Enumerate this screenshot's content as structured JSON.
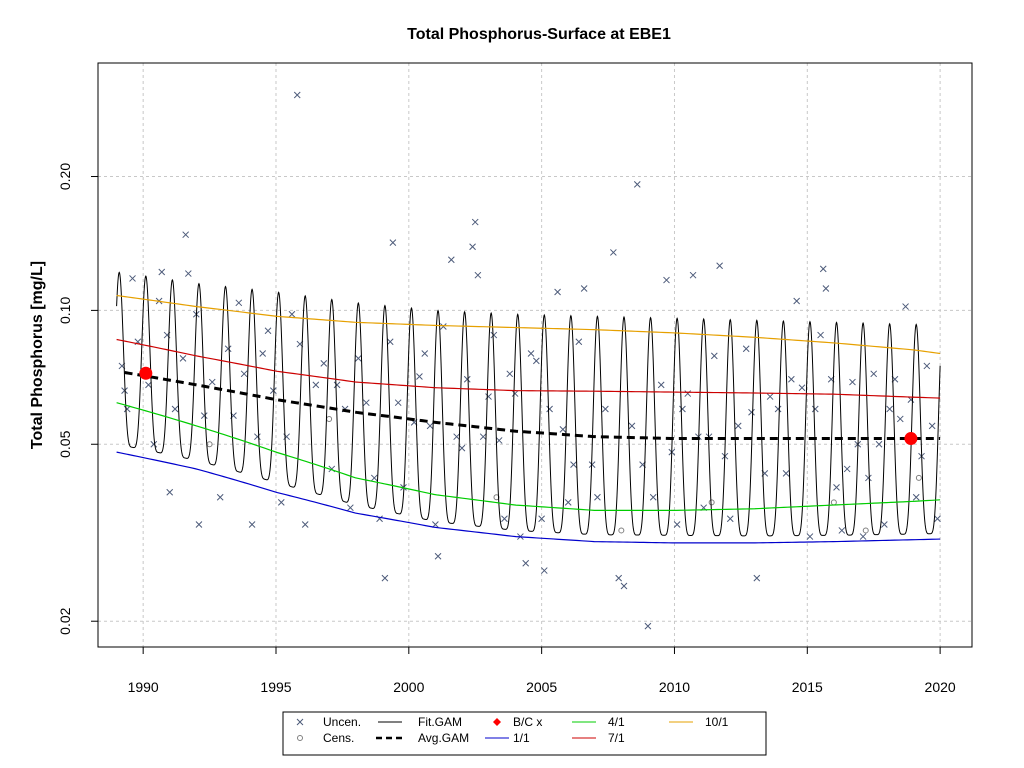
{
  "chart_data": {
    "type": "line",
    "title": "Total Phosphorus-Surface at EBE1",
    "xlabel": "",
    "ylabel": "Total Phosphorus [mg/L]",
    "xlim": [
      1988.3,
      2021.2
    ],
    "ylim": [
      0.0175,
      0.36
    ],
    "yscale": "log",
    "x_ticks": [
      1990,
      1995,
      2000,
      2005,
      2010,
      2015,
      2020
    ],
    "y_ticks": [
      0.02,
      0.05,
      0.1,
      0.2
    ],
    "y_tick_labels": [
      "0.02",
      "0.05",
      "0.10",
      "0.20"
    ],
    "grid": true,
    "legend_position": "bottom",
    "legend": [
      {
        "label": "Uncen.",
        "symbol": "x",
        "color": "#4d5b7a"
      },
      {
        "label": "Cens.",
        "symbol": "circle",
        "color": "#7f7f7f"
      },
      {
        "label": "Fit.GAM",
        "symbol": "line",
        "color": "#000000"
      },
      {
        "label": "Avg.GAM",
        "symbol": "dashed",
        "color": "#000000"
      },
      {
        "label": "B/C x",
        "symbol": "diamond",
        "color": "#ff0000"
      },
      {
        "label": "1/1",
        "symbol": "line",
        "color": "#0000cc"
      },
      {
        "label": "4/1",
        "symbol": "line",
        "color": "#00cc00"
      },
      {
        "label": "7/1",
        "symbol": "line",
        "color": "#cc0000"
      },
      {
        "label": "10/1",
        "symbol": "line",
        "color": "#e6a000"
      }
    ],
    "series": [
      {
        "name": "1/1",
        "color": "#0000cc",
        "x": [
          1989.0,
          1992,
          1995,
          1998,
          2001,
          2004,
          2007,
          2010,
          2013,
          2016,
          2019,
          2020.0
        ],
        "y": [
          0.048,
          0.044,
          0.039,
          0.035,
          0.0325,
          0.031,
          0.0302,
          0.03,
          0.03,
          0.0302,
          0.0305,
          0.0306
        ]
      },
      {
        "name": "4/1",
        "color": "#00cc00",
        "x": [
          1989.0,
          1992,
          1995,
          1998,
          2001,
          2004,
          2007,
          2010,
          2013,
          2016,
          2019,
          2020.0
        ],
        "y": [
          0.062,
          0.055,
          0.048,
          0.042,
          0.0385,
          0.0365,
          0.0355,
          0.0355,
          0.0358,
          0.0365,
          0.0372,
          0.0375
        ]
      },
      {
        "name": "7/1",
        "color": "#cc0000",
        "x": [
          1989.0,
          1992,
          1995,
          1998,
          2001,
          2004,
          2007,
          2010,
          2013,
          2016,
          2019,
          2020.0
        ],
        "y": [
          0.086,
          0.079,
          0.073,
          0.069,
          0.067,
          0.066,
          0.0658,
          0.0655,
          0.0652,
          0.0648,
          0.0638,
          0.0635
        ]
      },
      {
        "name": "10/1",
        "color": "#e6a000",
        "x": [
          1989.0,
          1992,
          1995,
          1998,
          2001,
          2004,
          2007,
          2010,
          2013,
          2016,
          2019,
          2020.0
        ],
        "y": [
          0.108,
          0.102,
          0.097,
          0.094,
          0.0925,
          0.0915,
          0.0905,
          0.089,
          0.087,
          0.0845,
          0.0815,
          0.08
        ]
      },
      {
        "name": "Avg.GAM",
        "color": "#000000",
        "x": [
          1989.3,
          1992,
          1995,
          1998,
          2001,
          2004,
          2007,
          2010,
          2013,
          2016,
          2019,
          2020.0
        ],
        "y": [
          0.0725,
          0.068,
          0.063,
          0.059,
          0.056,
          0.0535,
          0.052,
          0.0515,
          0.0515,
          0.0515,
          0.0515,
          0.0515
        ]
      }
    ],
    "fit_gam": {
      "name": "Fit.GAM",
      "color": "#000000",
      "x_start": 1989.0,
      "x_end": 2020.0,
      "period": 1.0,
      "peak_x": [
        1989,
        1992,
        1995,
        1998,
        2001,
        2004,
        2007,
        2010,
        2013,
        2016,
        2019,
        2020
      ],
      "peak_y": [
        0.122,
        0.115,
        0.11,
        0.104,
        0.1,
        0.098,
        0.097,
        0.096,
        0.095,
        0.094,
        0.093,
        0.093
      ],
      "trough_x": [
        1989,
        1992,
        1995,
        1998,
        2001,
        2004,
        2007,
        2010,
        2013,
        2016,
        2019,
        2020
      ],
      "trough_y": [
        0.05,
        0.046,
        0.041,
        0.0365,
        0.0335,
        0.032,
        0.0313,
        0.0312,
        0.0311,
        0.0312,
        0.0314,
        0.0315
      ]
    },
    "bc_points": {
      "name": "B/C x",
      "color": "#ff0000",
      "x": [
        1990.1,
        2018.9
      ],
      "y": [
        0.0722,
        0.0515
      ]
    },
    "observations_uncensored": [
      [
        1989.2,
        0.075
      ],
      [
        1989.3,
        0.066
      ],
      [
        1989.4,
        0.06
      ],
      [
        1989.6,
        0.118
      ],
      [
        1989.8,
        0.085
      ],
      [
        1990.2,
        0.068
      ],
      [
        1990.4,
        0.05
      ],
      [
        1990.6,
        0.105
      ],
      [
        1990.7,
        0.122
      ],
      [
        1990.9,
        0.088
      ],
      [
        1991.0,
        0.039
      ],
      [
        1991.2,
        0.06
      ],
      [
        1991.5,
        0.078
      ],
      [
        1991.6,
        0.148
      ],
      [
        1991.7,
        0.121
      ],
      [
        1992.0,
        0.098
      ],
      [
        1992.1,
        0.033
      ],
      [
        1992.3,
        0.058
      ],
      [
        1992.6,
        0.069
      ],
      [
        1992.9,
        0.038
      ],
      [
        1993.2,
        0.082
      ],
      [
        1993.4,
        0.058
      ],
      [
        1993.6,
        0.104
      ],
      [
        1993.8,
        0.072
      ],
      [
        1994.1,
        0.033
      ],
      [
        1994.3,
        0.052
      ],
      [
        1994.5,
        0.08
      ],
      [
        1994.7,
        0.09
      ],
      [
        1994.9,
        0.066
      ],
      [
        1995.2,
        0.037
      ],
      [
        1995.4,
        0.052
      ],
      [
        1995.6,
        0.098
      ],
      [
        1995.8,
        0.305
      ],
      [
        1995.9,
        0.084
      ],
      [
        1996.1,
        0.033
      ],
      [
        1996.5,
        0.068
      ],
      [
        1996.8,
        0.076
      ],
      [
        1997.1,
        0.044
      ],
      [
        1997.3,
        0.068
      ],
      [
        1997.6,
        0.06
      ],
      [
        1997.8,
        0.036
      ],
      [
        1998.1,
        0.078
      ],
      [
        1998.4,
        0.062
      ],
      [
        1998.7,
        0.042
      ],
      [
        1998.9,
        0.034
      ],
      [
        1999.1,
        0.025
      ],
      [
        1999.3,
        0.085
      ],
      [
        1999.4,
        0.142
      ],
      [
        1999.6,
        0.062
      ],
      [
        1999.8,
        0.04
      ],
      [
        2000.2,
        0.056
      ],
      [
        2000.4,
        0.071
      ],
      [
        2000.6,
        0.08
      ],
      [
        2000.8,
        0.055
      ],
      [
        2001.0,
        0.033
      ],
      [
        2001.1,
        0.028
      ],
      [
        2001.3,
        0.092
      ],
      [
        2001.6,
        0.13
      ],
      [
        2001.8,
        0.052
      ],
      [
        2002.0,
        0.049
      ],
      [
        2002.2,
        0.07
      ],
      [
        2002.4,
        0.139
      ],
      [
        2002.5,
        0.158
      ],
      [
        2002.6,
        0.12
      ],
      [
        2002.8,
        0.052
      ],
      [
        2003.0,
        0.064
      ],
      [
        2003.2,
        0.088
      ],
      [
        2003.4,
        0.051
      ],
      [
        2003.6,
        0.034
      ],
      [
        2003.8,
        0.072
      ],
      [
        2004.0,
        0.065
      ],
      [
        2004.2,
        0.031
      ],
      [
        2004.4,
        0.027
      ],
      [
        2004.6,
        0.08
      ],
      [
        2004.8,
        0.077
      ],
      [
        2005.0,
        0.034
      ],
      [
        2005.1,
        0.026
      ],
      [
        2005.3,
        0.06
      ],
      [
        2005.6,
        0.11
      ],
      [
        2005.8,
        0.054
      ],
      [
        2006.0,
        0.037
      ],
      [
        2006.2,
        0.045
      ],
      [
        2006.4,
        0.085
      ],
      [
        2006.6,
        0.112
      ],
      [
        2006.9,
        0.045
      ],
      [
        2007.1,
        0.038
      ],
      [
        2007.4,
        0.06
      ],
      [
        2007.7,
        0.135
      ],
      [
        2007.9,
        0.025
      ],
      [
        2008.1,
        0.024
      ],
      [
        2008.4,
        0.055
      ],
      [
        2008.6,
        0.192
      ],
      [
        2008.8,
        0.045
      ],
      [
        2009.0,
        0.0195
      ],
      [
        2009.2,
        0.038
      ],
      [
        2009.5,
        0.068
      ],
      [
        2009.7,
        0.117
      ],
      [
        2009.9,
        0.048
      ],
      [
        2010.1,
        0.033
      ],
      [
        2010.3,
        0.06
      ],
      [
        2010.5,
        0.065
      ],
      [
        2010.7,
        0.12
      ],
      [
        2010.9,
        0.052
      ],
      [
        2011.1,
        0.036
      ],
      [
        2011.3,
        0.052
      ],
      [
        2011.5,
        0.079
      ],
      [
        2011.7,
        0.126
      ],
      [
        2011.9,
        0.047
      ],
      [
        2012.1,
        0.034
      ],
      [
        2012.4,
        0.055
      ],
      [
        2012.7,
        0.082
      ],
      [
        2012.9,
        0.059
      ],
      [
        2013.1,
        0.025
      ],
      [
        2013.4,
        0.043
      ],
      [
        2013.6,
        0.064
      ],
      [
        2013.9,
        0.06
      ],
      [
        2014.2,
        0.043
      ],
      [
        2014.4,
        0.07
      ],
      [
        2014.6,
        0.105
      ],
      [
        2014.8,
        0.067
      ],
      [
        2015.1,
        0.031
      ],
      [
        2015.3,
        0.06
      ],
      [
        2015.5,
        0.088
      ],
      [
        2015.6,
        0.124
      ],
      [
        2015.7,
        0.112
      ],
      [
        2015.9,
        0.07
      ],
      [
        2016.1,
        0.04
      ],
      [
        2016.3,
        0.032
      ],
      [
        2016.5,
        0.044
      ],
      [
        2016.7,
        0.069
      ],
      [
        2016.9,
        0.05
      ],
      [
        2017.1,
        0.031
      ],
      [
        2017.3,
        0.042
      ],
      [
        2017.5,
        0.072
      ],
      [
        2017.7,
        0.05
      ],
      [
        2017.9,
        0.033
      ],
      [
        2018.1,
        0.06
      ],
      [
        2018.3,
        0.07
      ],
      [
        2018.5,
        0.057
      ],
      [
        2018.7,
        0.102
      ],
      [
        2018.9,
        0.063
      ],
      [
        2019.1,
        0.038
      ],
      [
        2019.3,
        0.047
      ],
      [
        2019.5,
        0.075
      ],
      [
        2019.7,
        0.055
      ],
      [
        2019.9,
        0.034
      ]
    ],
    "observations_censored": [
      [
        1992.5,
        0.05
      ],
      [
        1997.0,
        0.057
      ],
      [
        2003.3,
        0.038
      ],
      [
        2008.0,
        0.032
      ],
      [
        2011.4,
        0.037
      ],
      [
        2016.0,
        0.037
      ],
      [
        2017.2,
        0.032
      ],
      [
        2019.2,
        0.042
      ]
    ]
  }
}
